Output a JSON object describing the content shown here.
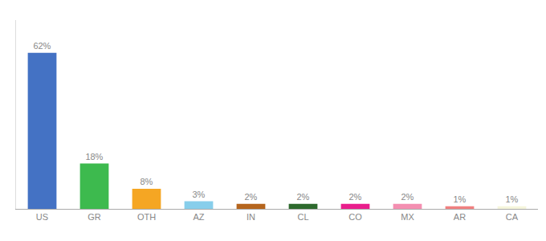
{
  "chart_data": {
    "type": "bar",
    "categories": [
      "US",
      "GR",
      "OTH",
      "AZ",
      "IN",
      "CL",
      "CO",
      "MX",
      "AR",
      "CA"
    ],
    "values": [
      62,
      18,
      8,
      3,
      2,
      2,
      2,
      2,
      1,
      1
    ],
    "value_labels": [
      "62%",
      "18%",
      "8%",
      "3%",
      "2%",
      "2%",
      "2%",
      "2%",
      "1%",
      "1%"
    ],
    "colors": [
      "#4472c4",
      "#3dba4e",
      "#f5a623",
      "#87ceeb",
      "#b5651d",
      "#2d6a2d",
      "#e91e8c",
      "#f48fb1",
      "#f08080",
      "#f5f5dc"
    ],
    "data_labels": true,
    "ylim": [
      0,
      75
    ],
    "grid": false,
    "tick_labels": "x"
  }
}
